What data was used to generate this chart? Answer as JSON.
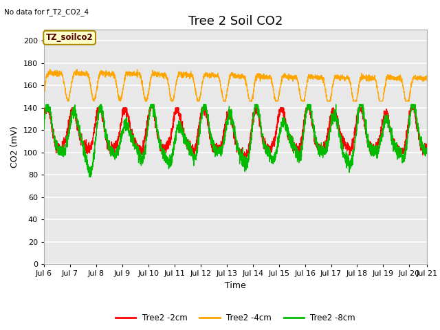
{
  "title": "Tree 2 Soil CO2",
  "no_data_text": "No data for f_T2_CO2_4",
  "xlabel": "Time",
  "ylabel": "CO2 (mV)",
  "ylim": [
    0,
    210
  ],
  "yticks": [
    0,
    20,
    40,
    60,
    80,
    100,
    120,
    140,
    160,
    180,
    200
  ],
  "xlim_start": 0,
  "xlim_end": 14.67,
  "xtick_labels": [
    "Jul 6",
    "Jul 7",
    "Jul 8",
    "Jul 9",
    "Jul 10",
    "Jul 11",
    "Jul 12",
    "Jul 13",
    "Jul 14",
    "Jul 15",
    "Jul 16",
    "Jul 17",
    "Jul 18",
    "Jul 19",
    "Jul 20",
    "Jul 21"
  ],
  "xtick_positions": [
    0,
    1,
    2,
    3,
    4,
    5,
    6,
    7,
    8,
    9,
    10,
    11,
    12,
    13,
    14,
    14.67
  ],
  "legend_labels": [
    "Tree2 -2cm",
    "Tree2 -4cm",
    "Tree2 -8cm"
  ],
  "legend_colors": [
    "#ff0000",
    "#ffa500",
    "#00bb00"
  ],
  "line_2cm_color": "#ff0000",
  "line_4cm_color": "#ffa500",
  "line_8cm_color": "#00bb00",
  "annotation_label": "TZ_soilco2",
  "plot_bg_color": "#e8e8e8",
  "fig_bg_color": "#ffffff",
  "grid_color": "#ffffff",
  "title_fontsize": 13,
  "axis_fontsize": 9,
  "tick_fontsize": 8
}
